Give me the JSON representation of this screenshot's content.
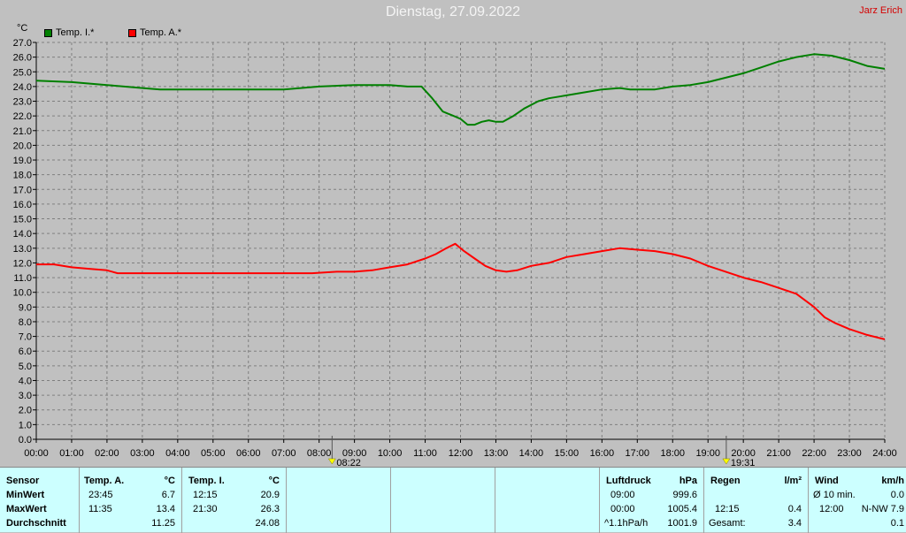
{
  "header": {
    "title": "Dienstag, 27.09.2022",
    "author": "Jarz Erich"
  },
  "markers": [
    {
      "label": "08:22",
      "hour": 8.367,
      "icon": "sunrise-icon"
    },
    {
      "label": "19:31",
      "hour": 19.517,
      "icon": "sunset-icon"
    }
  ],
  "chart_data": {
    "type": "line",
    "ylabel": "°C",
    "ylim": [
      0,
      27
    ],
    "yticks": [
      "0.0",
      "1.0",
      "2.0",
      "3.0",
      "4.0",
      "5.0",
      "6.0",
      "7.0",
      "8.0",
      "9.0",
      "10.0",
      "11.0",
      "12.0",
      "13.0",
      "14.0",
      "15.0",
      "16.0",
      "17.0",
      "18.0",
      "19.0",
      "20.0",
      "21.0",
      "22.0",
      "23.0",
      "24.0",
      "25.0",
      "26.0",
      "27.0"
    ],
    "xlim": [
      0,
      24
    ],
    "xticks": [
      "00:00",
      "01:00",
      "02:00",
      "03:00",
      "04:00",
      "05:00",
      "06:00",
      "07:00",
      "08:00",
      "09:00",
      "10:00",
      "11:00",
      "12:00",
      "13:00",
      "14:00",
      "15:00",
      "16:00",
      "17:00",
      "18:00",
      "19:00",
      "20:00",
      "21:00",
      "22:00",
      "23:00",
      "24:00"
    ],
    "grid": true,
    "legend": "top-left",
    "series": [
      {
        "name": "Temp. I.*",
        "color": "#008000",
        "points": [
          [
            0,
            24.4
          ],
          [
            1,
            24.3
          ],
          [
            2,
            24.1
          ],
          [
            3,
            23.9
          ],
          [
            3.5,
            23.8
          ],
          [
            5,
            23.8
          ],
          [
            7,
            23.8
          ],
          [
            8,
            24.0
          ],
          [
            9,
            24.1
          ],
          [
            10,
            24.1
          ],
          [
            10.5,
            24.0
          ],
          [
            10.9,
            24.0
          ],
          [
            11.2,
            23.2
          ],
          [
            11.5,
            22.3
          ],
          [
            11.8,
            22.0
          ],
          [
            12.0,
            21.8
          ],
          [
            12.2,
            21.4
          ],
          [
            12.4,
            21.4
          ],
          [
            12.6,
            21.6
          ],
          [
            12.8,
            21.7
          ],
          [
            13.0,
            21.6
          ],
          [
            13.2,
            21.6
          ],
          [
            13.5,
            22.0
          ],
          [
            13.8,
            22.5
          ],
          [
            14.2,
            23.0
          ],
          [
            14.5,
            23.2
          ],
          [
            15,
            23.4
          ],
          [
            15.5,
            23.6
          ],
          [
            16,
            23.8
          ],
          [
            16.5,
            23.9
          ],
          [
            16.8,
            23.8
          ],
          [
            17.5,
            23.8
          ],
          [
            18,
            24.0
          ],
          [
            18.5,
            24.1
          ],
          [
            19,
            24.3
          ],
          [
            19.5,
            24.6
          ],
          [
            20,
            24.9
          ],
          [
            20.5,
            25.3
          ],
          [
            21,
            25.7
          ],
          [
            21.5,
            26.0
          ],
          [
            22,
            26.2
          ],
          [
            22.5,
            26.1
          ],
          [
            23,
            25.8
          ],
          [
            23.5,
            25.4
          ],
          [
            24,
            25.2
          ]
        ]
      },
      {
        "name": "Temp. A.*",
        "color": "#ff0000",
        "points": [
          [
            0,
            11.9
          ],
          [
            0.5,
            11.9
          ],
          [
            1,
            11.7
          ],
          [
            1.5,
            11.6
          ],
          [
            2,
            11.5
          ],
          [
            2.3,
            11.3
          ],
          [
            3,
            11.3
          ],
          [
            4,
            11.3
          ],
          [
            5,
            11.3
          ],
          [
            6,
            11.3
          ],
          [
            7,
            11.3
          ],
          [
            7.8,
            11.3
          ],
          [
            8.5,
            11.4
          ],
          [
            9,
            11.4
          ],
          [
            9.5,
            11.5
          ],
          [
            10,
            11.7
          ],
          [
            10.5,
            11.9
          ],
          [
            11,
            12.3
          ],
          [
            11.3,
            12.6
          ],
          [
            11.6,
            13.0
          ],
          [
            11.85,
            13.3
          ],
          [
            12.1,
            12.8
          ],
          [
            12.4,
            12.3
          ],
          [
            12.7,
            11.8
          ],
          [
            13.0,
            11.5
          ],
          [
            13.3,
            11.4
          ],
          [
            13.6,
            11.5
          ],
          [
            14,
            11.8
          ],
          [
            14.5,
            12.0
          ],
          [
            15,
            12.4
          ],
          [
            15.5,
            12.6
          ],
          [
            16,
            12.8
          ],
          [
            16.5,
            13.0
          ],
          [
            17,
            12.9
          ],
          [
            17.5,
            12.8
          ],
          [
            18,
            12.6
          ],
          [
            18.5,
            12.3
          ],
          [
            19,
            11.8
          ],
          [
            19.5,
            11.4
          ],
          [
            20,
            11.0
          ],
          [
            20.5,
            10.7
          ],
          [
            21,
            10.3
          ],
          [
            21.5,
            9.9
          ],
          [
            22,
            9.0
          ],
          [
            22.3,
            8.3
          ],
          [
            22.6,
            7.9
          ],
          [
            23,
            7.5
          ],
          [
            23.5,
            7.1
          ],
          [
            24,
            6.8
          ]
        ]
      }
    ]
  },
  "table": {
    "sensor": {
      "header": "Sensor",
      "rows": [
        "MinWert",
        "MaxWert",
        "Durchschnitt"
      ]
    },
    "temp_a": {
      "header": "Temp. A.",
      "unit": "°C",
      "min_time": "23:45",
      "min": "6.7",
      "max_time": "11:35",
      "max": "13.4",
      "avg": "11.25"
    },
    "temp_i": {
      "header": "Temp. I.",
      "unit": "°C",
      "min_time": "12:15",
      "min": "20.9",
      "max_time": "21:30",
      "max": "26.3",
      "avg": "24.08"
    },
    "luftdruck": {
      "header": "Luftdruck",
      "unit": "hPa",
      "r1_label": "09:00",
      "r1_val": "999.6",
      "r2_label": "00:00",
      "r2_val": "1005.4",
      "r3_label": "^1.1hPa/h",
      "r3_val": "1001.9"
    },
    "regen": {
      "header": "Regen",
      "unit": "l/m²",
      "r2_label": "12:15",
      "r2_val": "0.4",
      "r3_label": "Gesamt:",
      "r3_val": "3.4"
    },
    "wind": {
      "header": "Wind",
      "unit": "km/h",
      "r1_label": "Ø 10 min.",
      "r1_val": "0.0",
      "r2_label": "12:00",
      "r2_val": "N-NW 7.9",
      "r3_val": "0.1"
    }
  }
}
